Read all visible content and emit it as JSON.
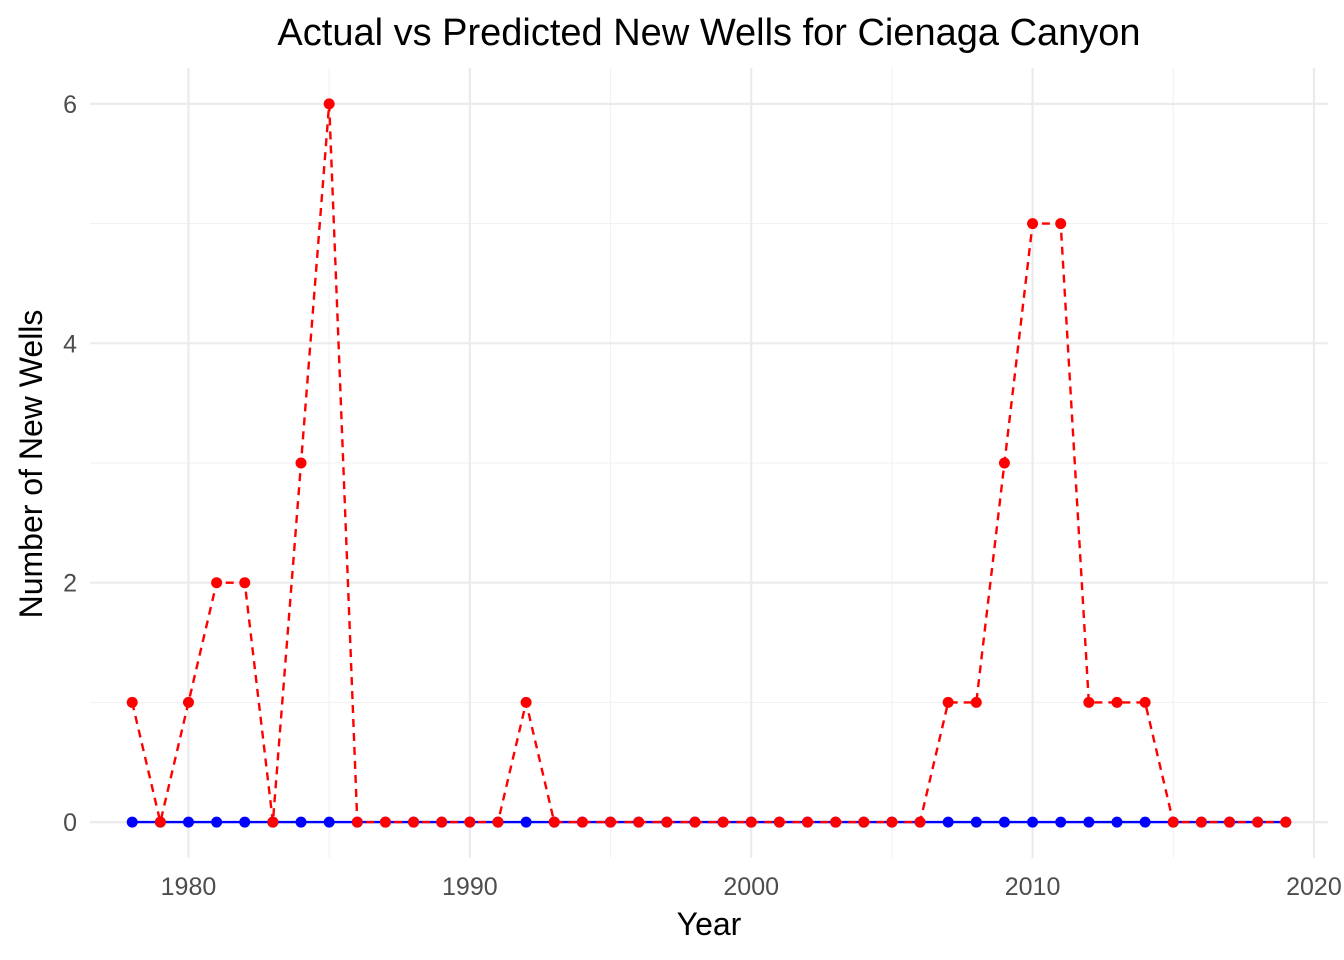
{
  "chart_data": {
    "type": "line",
    "title": "Actual vs Predicted New Wells for Cienaga Canyon",
    "xlabel": "Year",
    "ylabel": "Number of New Wells",
    "xlim": [
      1976.5,
      2020.5
    ],
    "ylim": [
      -0.3,
      6.3
    ],
    "x_major_ticks": [
      1980,
      1990,
      2000,
      2010,
      2020
    ],
    "x_minor_ticks": [
      1985,
      1995,
      2005,
      2015
    ],
    "y_major_ticks": [
      0,
      2,
      4,
      6
    ],
    "y_minor_ticks": [
      1,
      3,
      5
    ],
    "x_tick_labels": [
      "1980",
      "1990",
      "2000",
      "2010",
      "2020"
    ],
    "y_tick_labels": [
      "0",
      "2",
      "4",
      "6"
    ],
    "grid": true,
    "legend": "none",
    "x": [
      1978,
      1979,
      1980,
      1981,
      1982,
      1983,
      1984,
      1985,
      1986,
      1987,
      1988,
      1989,
      1990,
      1991,
      1992,
      1993,
      1994,
      1995,
      1996,
      1997,
      1998,
      1999,
      2000,
      2001,
      2002,
      2003,
      2004,
      2005,
      2006,
      2007,
      2008,
      2009,
      2010,
      2011,
      2012,
      2013,
      2014,
      2015,
      2016,
      2017,
      2018,
      2019
    ],
    "series": [
      {
        "color": "#0000ff",
        "line_style": "solid",
        "values": [
          0,
          0,
          0,
          0,
          0,
          0,
          0,
          0,
          0,
          0,
          0,
          0,
          0,
          0,
          0,
          0,
          0,
          0,
          0,
          0,
          0,
          0,
          0,
          0,
          0,
          0,
          0,
          0,
          0,
          0,
          0,
          0,
          0,
          0,
          0,
          0,
          0,
          0,
          0,
          0,
          0,
          0
        ]
      },
      {
        "color": "#ff0000",
        "line_style": "dashed",
        "values": [
          1,
          0,
          1,
          2,
          2,
          0,
          3,
          6,
          0,
          0,
          0,
          0,
          0,
          0,
          1,
          0,
          0,
          0,
          0,
          0,
          0,
          0,
          0,
          0,
          0,
          0,
          0,
          0,
          0,
          1,
          1,
          3,
          5,
          5,
          1,
          1,
          1,
          0,
          0,
          0,
          0,
          0
        ]
      }
    ]
  }
}
